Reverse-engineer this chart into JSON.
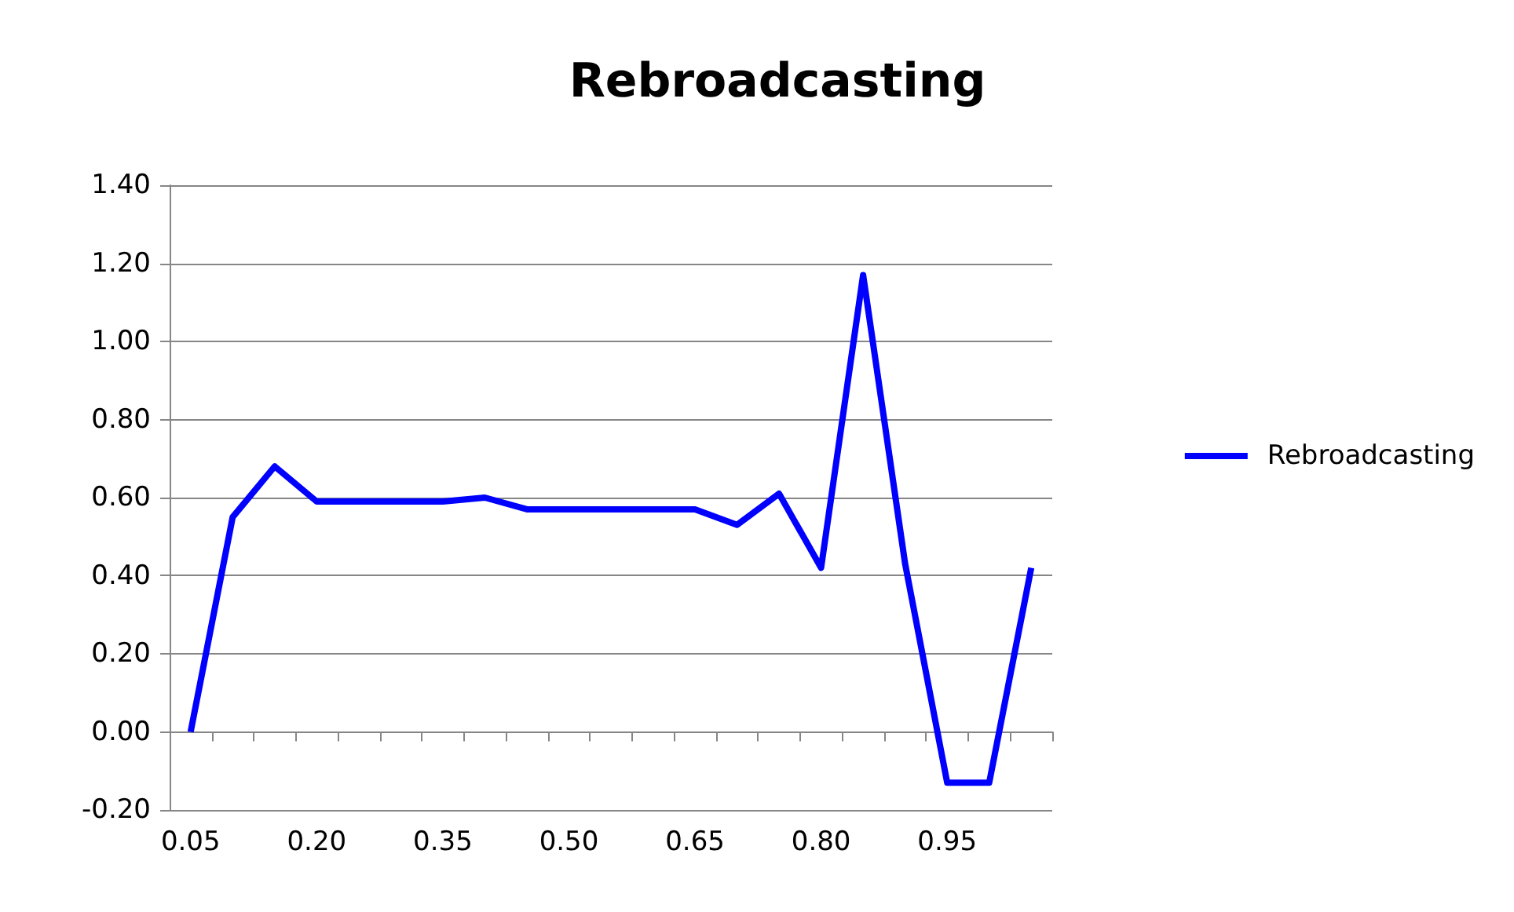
{
  "chart_data": {
    "type": "line",
    "title": "Rebroadcasting",
    "categories": [
      "0.05",
      null,
      null,
      "0.20",
      null,
      null,
      "0.35",
      null,
      null,
      "0.50",
      null,
      null,
      "0.65",
      null,
      null,
      "0.80",
      null,
      null,
      "0.95",
      null,
      null
    ],
    "series": [
      {
        "name": "Rebroadcasting",
        "color": "#0000ff",
        "values": [
          0.0,
          0.55,
          0.68,
          0.59,
          0.59,
          0.59,
          0.59,
          0.6,
          0.57,
          0.57,
          0.57,
          0.57,
          0.57,
          0.53,
          0.61,
          0.42,
          1.17,
          0.43,
          -0.13,
          -0.13,
          0.42
        ]
      }
    ],
    "ylim": [
      -0.2,
      1.4
    ],
    "yticks": [
      {
        "value": -0.2,
        "label": "-0.20"
      },
      {
        "value": 0,
        "label": "0.00"
      },
      {
        "value": 0.2,
        "label": "0.20"
      },
      {
        "value": 0.4,
        "label": "0.40"
      },
      {
        "value": 0.6,
        "label": "0.60"
      },
      {
        "value": 0.8,
        "label": "0.80"
      },
      {
        "value": 1.0,
        "label": "1.00"
      },
      {
        "value": 1.2,
        "label": "1.20"
      },
      {
        "value": 1.4,
        "label": "1.40"
      }
    ],
    "grid": "y",
    "legend": "right",
    "marker": "none",
    "line_style": "solid"
  }
}
